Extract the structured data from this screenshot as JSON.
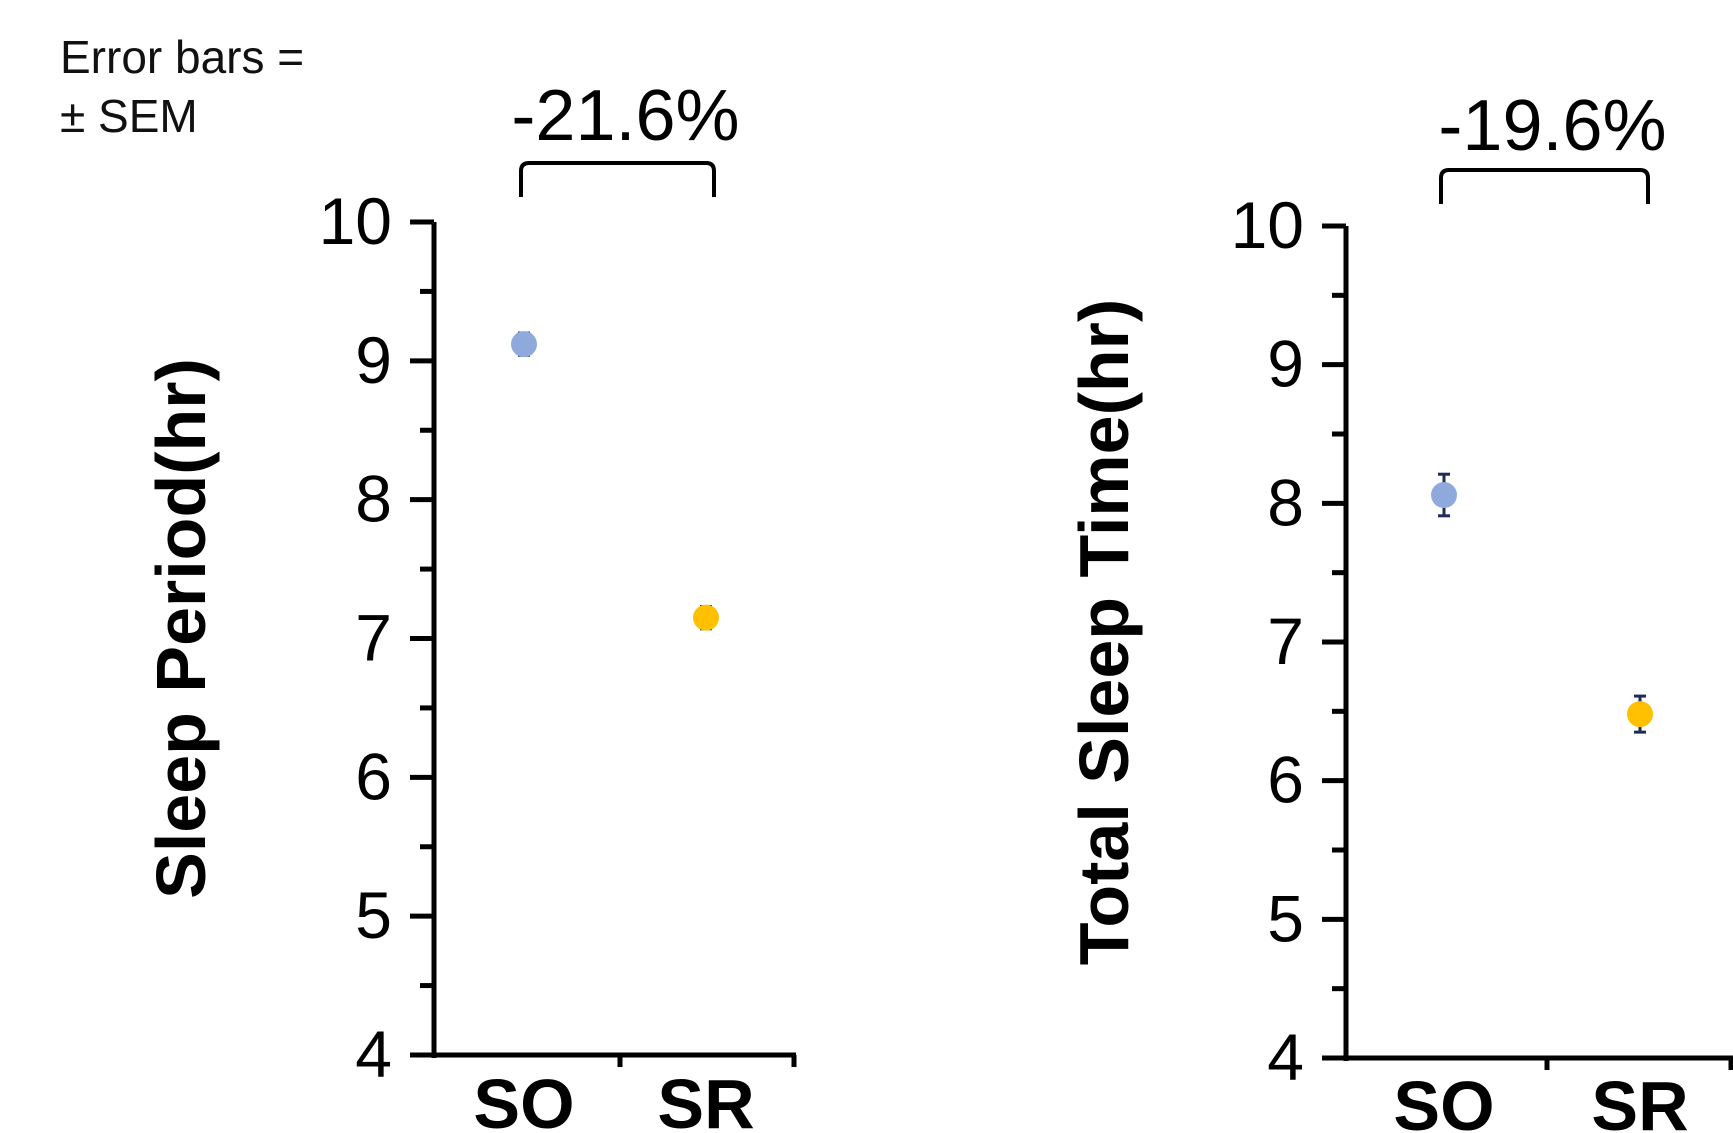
{
  "note": {
    "line1": "Error bars =",
    "line2": "± SEM"
  },
  "chart_data": [
    {
      "type": "scatter",
      "title": "",
      "xlabel": "",
      "ylabel": "Sleep Period(hr)",
      "categories": [
        "SO",
        "SR"
      ],
      "values": [
        9.12,
        7.15
      ],
      "errors": [
        0.08,
        0.08
      ],
      "colors": [
        "#8fa9dc",
        "#ffc000"
      ],
      "ylim": [
        4,
        10
      ],
      "yticks": [
        4,
        5,
        6,
        7,
        8,
        9,
        10
      ],
      "comparison": "-21.6%",
      "grid": false
    },
    {
      "type": "scatter",
      "title": "",
      "xlabel": "",
      "ylabel": "Total Sleep Time(hr)",
      "categories": [
        "SO",
        "SR"
      ],
      "values": [
        8.06,
        6.48
      ],
      "errors": [
        0.15,
        0.13
      ],
      "colors": [
        "#8fa9dc",
        "#ffc000"
      ],
      "ylim": [
        4,
        10
      ],
      "yticks": [
        4,
        5,
        6,
        7,
        8,
        9,
        10
      ],
      "comparison": "-19.6%",
      "grid": false
    }
  ]
}
